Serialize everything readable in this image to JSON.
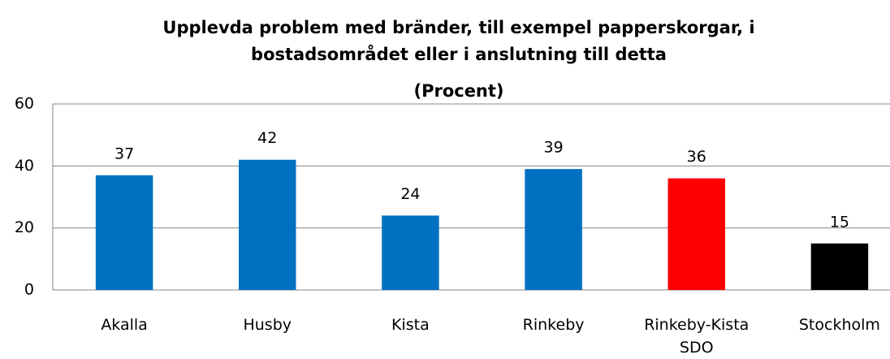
{
  "chart_data": {
    "type": "bar",
    "title": "Upplevda problem med bränder, till exempel papperskorgar, i bostadsområdet eller i anslutning till detta",
    "subtitle": "(Procent)",
    "categories": [
      "Akalla",
      "Husby",
      "Kista",
      "Rinkeby",
      "Rinkeby-Kista SDO",
      "Stockholm"
    ],
    "values": [
      37,
      42,
      24,
      39,
      36,
      15
    ],
    "colors": [
      "#0070c0",
      "#0070c0",
      "#0070c0",
      "#0070c0",
      "#ff0000",
      "#000000"
    ],
    "ylim": [
      0,
      60
    ],
    "yticks": [
      0,
      20,
      40,
      60
    ],
    "grid": true
  }
}
